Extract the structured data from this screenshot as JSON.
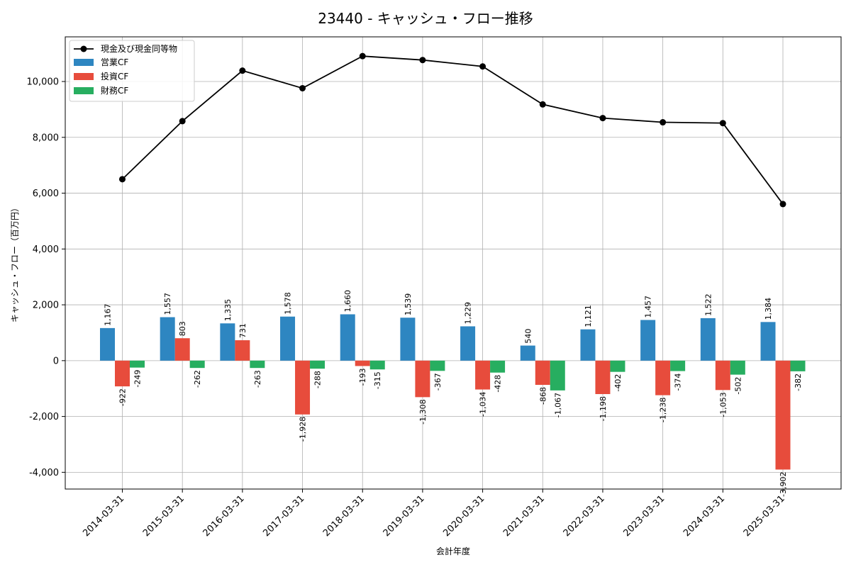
{
  "chart_data": {
    "type": "bar",
    "title": "23440 - キャッシュ・フロー推移",
    "xlabel": "会計年度",
    "ylabel": "キャッシュ・フロー（百万円）",
    "categories": [
      "2014-03-31",
      "2015-03-31",
      "2016-03-31",
      "2017-03-31",
      "2018-03-31",
      "2019-03-31",
      "2020-03-31",
      "2021-03-31",
      "2022-03-31",
      "2023-03-31",
      "2024-03-31",
      "2025-03-31"
    ],
    "ylim": [
      -4600,
      11600
    ],
    "yticks": [
      -4000,
      -2000,
      0,
      2000,
      4000,
      6000,
      8000,
      10000
    ],
    "ytick_labels": [
      "-4,000",
      "-2,000",
      "0",
      "2,000",
      "4,000",
      "6,000",
      "8,000",
      "10,000"
    ],
    "grid": true,
    "legend_position": "top-left",
    "series": [
      {
        "name": "営業CF",
        "kind": "bar",
        "color": "#2e86c1",
        "values": [
          1167,
          1557,
          1335,
          1578,
          1660,
          1539,
          1229,
          540,
          1121,
          1457,
          1522,
          1384
        ],
        "labels": [
          "1,167",
          "1,557",
          "1,335",
          "1,578",
          "1,660",
          "1,539",
          "1,229",
          "540",
          "1,121",
          "1,457",
          "1,522",
          "1,384"
        ]
      },
      {
        "name": "投資CF",
        "kind": "bar",
        "color": "#e74c3c",
        "values": [
          -922,
          803,
          731,
          -1928,
          -193,
          -1308,
          -1034,
          -868,
          -1198,
          -1238,
          -1053,
          -3902
        ],
        "labels": [
          "-922",
          "803",
          "731",
          "-1,928",
          "-193",
          "-1,308",
          "-1,034",
          "-868",
          "-1,198",
          "-1,238",
          "-1,053",
          "-3,902"
        ]
      },
      {
        "name": "財務CF",
        "kind": "bar",
        "color": "#27ae60",
        "values": [
          -249,
          -262,
          -263,
          -288,
          -315,
          -367,
          -428,
          -1067,
          -402,
          -374,
          -502,
          -382
        ],
        "labels": [
          "-249",
          "-262",
          "-263",
          "-288",
          "-315",
          "-367",
          "-428",
          "-1,067",
          "-402",
          "-374",
          "-502",
          "-382"
        ]
      },
      {
        "name": "現金及び現金同等物",
        "kind": "line",
        "color": "#000000",
        "values": [
          6500,
          8580,
          10390,
          9760,
          10910,
          10770,
          10540,
          9180,
          8690,
          8540,
          8510,
          5610
        ]
      }
    ]
  }
}
